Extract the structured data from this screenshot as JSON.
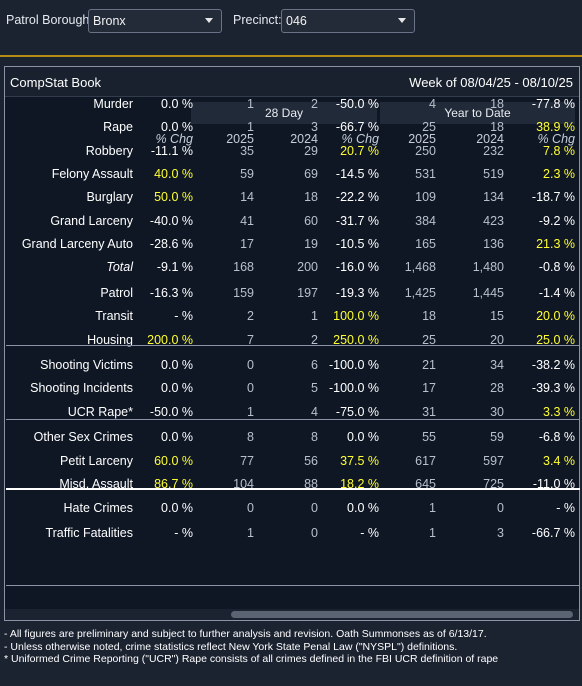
{
  "filters": {
    "borough_label": "Patrol Borough:",
    "borough_value": "Bronx",
    "precinct_label": "Precinct:",
    "precinct_value": "046"
  },
  "panel": {
    "title": "CompStat Book",
    "week": "Week of 08/04/25 - 08/10/25"
  },
  "groups": {
    "day28": "28 Day",
    "ytd": "Year to Date"
  },
  "columns": [
    "% Chg",
    "2025",
    "2024",
    "% Chg",
    "2025",
    "2024",
    "% Chg"
  ],
  "rows": [
    {
      "label": "Murder",
      "italic": false,
      "cells": [
        "0.0 %",
        "1",
        "2",
        "-50.0 %",
        "4",
        "18",
        "-77.8 %"
      ],
      "hl": [
        false,
        false,
        false,
        false,
        false,
        false,
        false
      ]
    },
    {
      "label": "Rape",
      "italic": false,
      "cells": [
        "0.0 %",
        "1",
        "3",
        "-66.7 %",
        "25",
        "18",
        "38.9 %"
      ],
      "hl": [
        false,
        false,
        false,
        false,
        false,
        false,
        true
      ]
    },
    {
      "label": "Robbery",
      "italic": false,
      "cells": [
        "-11.1 %",
        "35",
        "29",
        "20.7 %",
        "250",
        "232",
        "7.8 %"
      ],
      "hl": [
        false,
        false,
        false,
        true,
        false,
        false,
        true
      ]
    },
    {
      "label": "Felony Assault",
      "italic": false,
      "cells": [
        "40.0 %",
        "59",
        "69",
        "-14.5 %",
        "531",
        "519",
        "2.3 %"
      ],
      "hl": [
        true,
        false,
        false,
        false,
        false,
        false,
        true
      ]
    },
    {
      "label": "Burglary",
      "italic": false,
      "cells": [
        "50.0 %",
        "14",
        "18",
        "-22.2 %",
        "109",
        "134",
        "-18.7 %"
      ],
      "hl": [
        true,
        false,
        false,
        false,
        false,
        false,
        false
      ]
    },
    {
      "label": "Grand Larceny",
      "italic": false,
      "cells": [
        "-40.0 %",
        "41",
        "60",
        "-31.7 %",
        "384",
        "423",
        "-9.2 %"
      ],
      "hl": [
        false,
        false,
        false,
        false,
        false,
        false,
        false
      ]
    },
    {
      "label": "Grand Larceny Auto",
      "italic": false,
      "cells": [
        "-28.6 %",
        "17",
        "19",
        "-10.5 %",
        "165",
        "136",
        "21.3 %"
      ],
      "hl": [
        false,
        false,
        false,
        false,
        false,
        false,
        true
      ]
    },
    {
      "label": "Total",
      "italic": true,
      "cells": [
        "-9.1 %",
        "168",
        "200",
        "-16.0 %",
        "1,468",
        "1,480",
        "-0.8 %"
      ],
      "hl": [
        false,
        false,
        false,
        false,
        false,
        false,
        false
      ]
    },
    {
      "label": "Patrol",
      "italic": false,
      "cells": [
        "-16.3 %",
        "159",
        "197",
        "-19.3 %",
        "1,425",
        "1,445",
        "-1.4 %"
      ],
      "hl": [
        false,
        false,
        false,
        false,
        false,
        false,
        false
      ]
    },
    {
      "label": "Transit",
      "italic": false,
      "cells": [
        "- %",
        "2",
        "1",
        "100.0 %",
        "18",
        "15",
        "20.0 %"
      ],
      "hl": [
        false,
        false,
        false,
        true,
        false,
        false,
        true
      ]
    },
    {
      "label": "Housing",
      "italic": false,
      "cells": [
        "200.0 %",
        "7",
        "2",
        "250.0 %",
        "25",
        "20",
        "25.0 %"
      ],
      "hl": [
        true,
        false,
        false,
        true,
        false,
        false,
        true
      ]
    },
    {
      "label": "Shooting Victims",
      "italic": false,
      "cells": [
        "0.0 %",
        "0",
        "6",
        "-100.0 %",
        "21",
        "34",
        "-38.2 %"
      ],
      "hl": [
        false,
        false,
        false,
        false,
        false,
        false,
        false
      ]
    },
    {
      "label": "Shooting Incidents",
      "italic": false,
      "cells": [
        "0.0 %",
        "0",
        "5",
        "-100.0 %",
        "17",
        "28",
        "-39.3 %"
      ],
      "hl": [
        false,
        false,
        false,
        false,
        false,
        false,
        false
      ]
    },
    {
      "label": "UCR Rape*",
      "italic": false,
      "cells": [
        "-50.0 %",
        "1",
        "4",
        "-75.0 %",
        "31",
        "30",
        "3.3 %"
      ],
      "hl": [
        false,
        false,
        false,
        false,
        false,
        false,
        true
      ]
    },
    {
      "label": "Other Sex Crimes",
      "italic": false,
      "cells": [
        "0.0 %",
        "8",
        "8",
        "0.0 %",
        "55",
        "59",
        "-6.8 %"
      ],
      "hl": [
        false,
        false,
        false,
        false,
        false,
        false,
        false
      ]
    },
    {
      "label": "Petit Larceny",
      "italic": false,
      "cells": [
        "60.0 %",
        "77",
        "56",
        "37.5 %",
        "617",
        "597",
        "3.4 %"
      ],
      "hl": [
        true,
        false,
        false,
        true,
        false,
        false,
        true
      ]
    },
    {
      "label": "Misd. Assault",
      "italic": false,
      "cells": [
        "86.7 %",
        "104",
        "88",
        "18.2 %",
        "645",
        "725",
        "-11.0 %"
      ],
      "hl": [
        true,
        false,
        false,
        true,
        false,
        false,
        false
      ]
    },
    {
      "label": "Hate Crimes",
      "italic": false,
      "cells": [
        "0.0 %",
        "0",
        "0",
        "0.0 %",
        "1",
        "0",
        "- %"
      ],
      "hl": [
        false,
        false,
        false,
        false,
        false,
        false,
        false
      ]
    },
    {
      "label": "Traffic Fatalities",
      "italic": false,
      "cells": [
        "- %",
        "1",
        "0",
        "- %",
        "1",
        "3",
        "-66.7 %"
      ],
      "hl": [
        false,
        false,
        false,
        false,
        false,
        false,
        false
      ]
    }
  ],
  "footnotes": [
    "- All figures are preliminary and subject to further analysis and revision. Oath Summonses as of 6/13/17.",
    "- Unless otherwise noted, crime statistics reflect New York State Penal Law (\"NYSPL\") definitions.",
    "* Uniformed Crime Reporting (\"UCR\") Rape consists of all crimes defined in the FBI UCR definition of rape"
  ],
  "colors": {
    "background": "#1b2230",
    "panel": "#0f1724",
    "highlight": "#ffff33",
    "accent_rule": "#b88a16"
  }
}
